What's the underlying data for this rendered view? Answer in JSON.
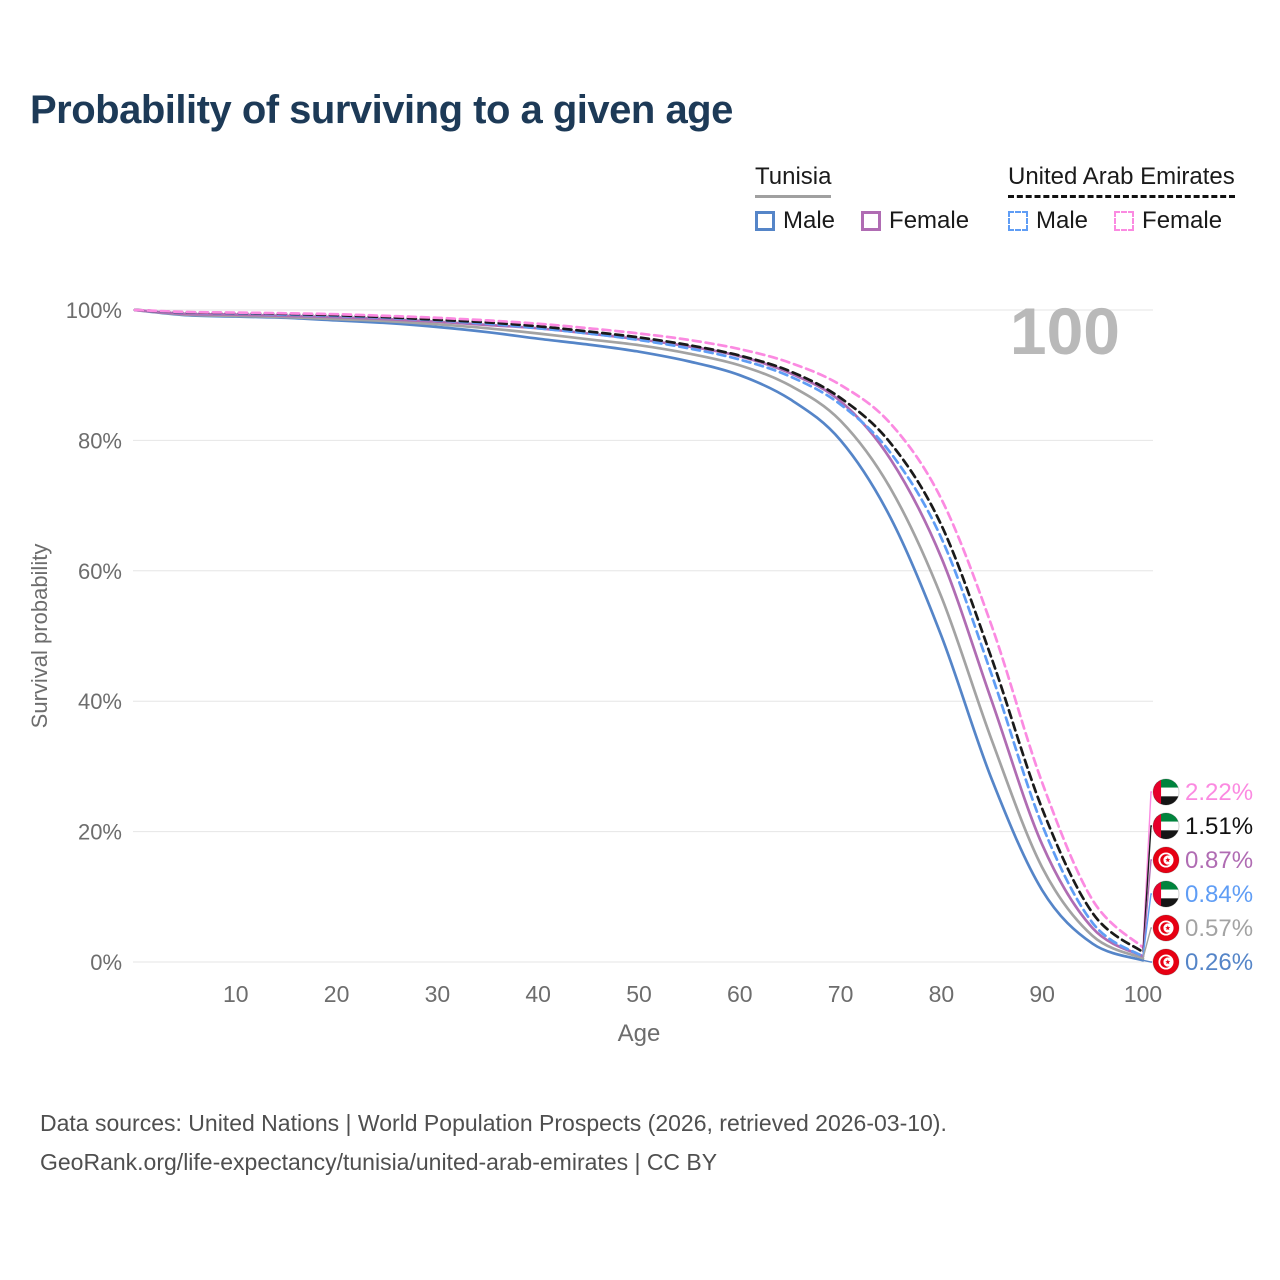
{
  "title": "Probability of surviving to a given age",
  "legend": {
    "groups": [
      {
        "name": "Tunisia",
        "line_style": "solid",
        "underline_color": "#a0a0a0",
        "items": [
          {
            "label": "Male",
            "color": "#5585c8"
          },
          {
            "label": "Female",
            "color": "#b06cb3"
          }
        ]
      },
      {
        "name": "United Arab Emirates",
        "line_style": "dashed",
        "underline_color": "#111111",
        "items": [
          {
            "label": "Male",
            "color": "#5f9df5"
          },
          {
            "label": "Female",
            "color": "#fb8ae1"
          }
        ]
      }
    ]
  },
  "chart_data": {
    "type": "line",
    "title": "Probability of surviving to a given age",
    "xlabel": "Age",
    "ylabel": "Survival probability",
    "xlim": [
      0,
      100
    ],
    "ylim": [
      0,
      100
    ],
    "x_ticks": [
      10,
      20,
      30,
      40,
      50,
      60,
      70,
      80,
      90,
      100
    ],
    "y_ticks": [
      0,
      20,
      40,
      60,
      80,
      100
    ],
    "grid": "horizontal",
    "legend_position": "top-right",
    "hover_age_label": "100",
    "x": [
      0,
      5,
      10,
      15,
      20,
      25,
      30,
      35,
      40,
      45,
      50,
      55,
      60,
      65,
      70,
      75,
      80,
      85,
      90,
      95,
      100
    ],
    "series": [
      {
        "name": "Tunisia Male",
        "country": "Tunisia",
        "sex": "Male",
        "color": "#5585c8",
        "dash": false,
        "flag": "tunisia",
        "end_label": "0.26%",
        "values": [
          100,
          99.2,
          99.0,
          98.8,
          98.4,
          98.0,
          97.4,
          96.6,
          95.6,
          94.7,
          93.6,
          92.1,
          90.0,
          86.3,
          80.0,
          68.0,
          50.0,
          28.0,
          11.0,
          2.8,
          0.26
        ]
      },
      {
        "name": "Tunisia Both sexes",
        "country": "Tunisia",
        "sex": "Both sexes",
        "color": "#a3a3a3",
        "dash": false,
        "flag": "tunisia",
        "end_label": "0.57%",
        "values": [
          100,
          99.3,
          99.1,
          98.9,
          98.6,
          98.3,
          97.8,
          97.2,
          96.4,
          95.5,
          94.6,
          93.3,
          91.5,
          88.4,
          83.0,
          72.5,
          56.0,
          34.0,
          14.5,
          4.0,
          0.57
        ]
      },
      {
        "name": "Tunisia Female",
        "country": "Tunisia",
        "sex": "Female",
        "color": "#b06cb3",
        "dash": false,
        "flag": "tunisia",
        "end_label": "0.87%",
        "values": [
          100,
          99.4,
          99.3,
          99.1,
          98.9,
          98.6,
          98.2,
          97.7,
          97.2,
          96.4,
          95.5,
          94.4,
          92.9,
          90.3,
          86.0,
          77.0,
          62.0,
          40.0,
          18.0,
          5.2,
          0.87
        ]
      },
      {
        "name": "United Arab Emirates Male",
        "country": "United Arab Emirates",
        "sex": "Male",
        "color": "#5f9df5",
        "dash": true,
        "flag": "uae",
        "end_label": "0.84%",
        "values": [
          100,
          99.6,
          99.5,
          99.3,
          99.1,
          98.8,
          98.4,
          97.9,
          97.2,
          96.4,
          95.4,
          94.1,
          92.4,
          89.8,
          85.5,
          78.0,
          65.0,
          44.0,
          21.0,
          6.0,
          0.84
        ]
      },
      {
        "name": "United Arab Emirates Both sexes",
        "country": "United Arab Emirates",
        "sex": "Both sexes",
        "color": "#1a1a1a",
        "dash": true,
        "flag": "uae",
        "end_label": "1.51%",
        "values": [
          100,
          99.65,
          99.55,
          99.4,
          99.2,
          98.9,
          98.5,
          98.1,
          97.5,
          96.7,
          95.8,
          94.6,
          93.0,
          90.6,
          86.5,
          79.5,
          67.0,
          46.5,
          23.5,
          7.5,
          1.51
        ]
      },
      {
        "name": "United Arab Emirates Female",
        "country": "United Arab Emirates",
        "sex": "Female",
        "color": "#fb8ae1",
        "dash": true,
        "flag": "uae",
        "end_label": "2.22%",
        "values": [
          100,
          99.7,
          99.6,
          99.5,
          99.35,
          99.1,
          98.8,
          98.4,
          97.9,
          97.2,
          96.4,
          95.4,
          94.0,
          91.9,
          88.5,
          82.5,
          71.0,
          51.5,
          27.5,
          9.5,
          2.22
        ]
      }
    ],
    "colors": {
      "grid": "#e6e6e6",
      "axis_text": "#6d6d6d",
      "watermark": "#b9b9b9",
      "title": "#1d3a57"
    }
  },
  "footer": {
    "line1": "Data sources: United Nations | World Population Prospects (2026, retrieved 2026-03-10).",
    "line2": "GeoRank.org/life-expectancy/tunisia/united-arab-emirates | CC BY"
  }
}
